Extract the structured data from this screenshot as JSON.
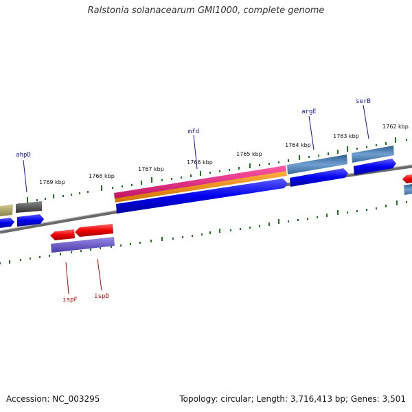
{
  "title": "Ralstonia solanacearum GMI1000, complete genome",
  "accession": "Accession: NC_003295",
  "summary": "Topology: circular; Length: 3,716,413 bp; Genes: 3,501",
  "ruler_labels": [
    "1762 kbp",
    "1763 kbp",
    "1764 kbp",
    "1765 kbp",
    "1766 kbp",
    "1767 kbp",
    "1768 kbp",
    "1769 kbp"
  ],
  "gene_labels": {
    "top": [
      "ahpD",
      "mfd",
      "argE",
      "serB"
    ],
    "bottom": [
      "ispF",
      "ispD"
    ]
  },
  "colors": {
    "forward_cds": "#0000ee",
    "reverse_cds": "#ee0000",
    "steelblue": "#4a7fb5",
    "magenta": "#e0207f",
    "orange": "#f08c00",
    "purple": "#6a5acd",
    "olive": "#a9a36a",
    "gray": "#5a5a5a",
    "tick": "#1a7a1a",
    "label_top": "#1010a0",
    "label_bottom": "#c00000"
  }
}
